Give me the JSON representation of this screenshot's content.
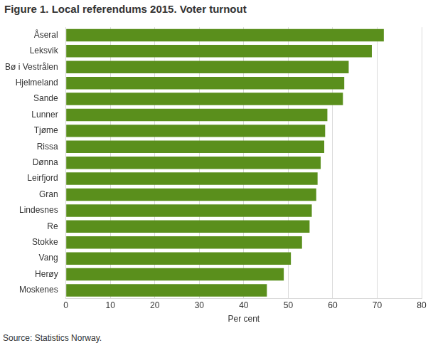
{
  "chart_data": {
    "type": "bar",
    "orientation": "horizontal",
    "title": "Figure 1. Local referendums 2015. Voter turnout",
    "x_label": "Per cent",
    "source": "Source: Statistics Norway.",
    "categories": [
      "Åseral",
      "Leksvik",
      "Bø i Vestrålen",
      "Hjelmeland",
      "Sande",
      "Lunner",
      "Tjøme",
      "Rissa",
      "Dønna",
      "Leirfjord",
      "Gran",
      "Lindesnes",
      "Re",
      "Stokke",
      "Vang",
      "Herøy",
      "Moskenes"
    ],
    "values": [
      71.5,
      68.8,
      63.6,
      62.6,
      62.3,
      58.8,
      58.3,
      58.1,
      57.3,
      56.6,
      56.3,
      55.3,
      54.8,
      53.1,
      50.6,
      49.0,
      45.2
    ],
    "color": "#5a8f1c",
    "xlim": [
      0,
      80
    ],
    "xticks": [
      0,
      10,
      20,
      30,
      40,
      50,
      60,
      70,
      80
    ],
    "grid": true
  }
}
